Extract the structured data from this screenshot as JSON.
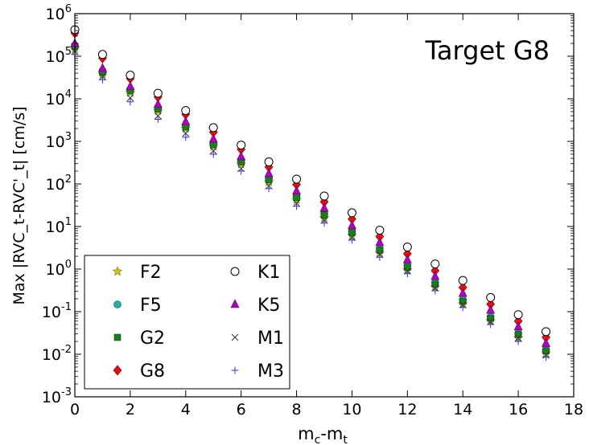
{
  "chart_data": {
    "type": "scatter",
    "annotation": "Target G8",
    "xlabel_main": "m",
    "xlabel_sub1": "c",
    "xlabel_sep": "-m",
    "xlabel_sub2": "t",
    "ylabel": "Max |RVC_t-RVC'_t|  [cm/s]",
    "yscale": "log",
    "xlim": [
      0,
      18
    ],
    "ylim": [
      0.001,
      1000000
    ],
    "xticks": [
      0,
      2,
      4,
      6,
      8,
      10,
      12,
      14,
      16,
      18
    ],
    "xtick_labels": [
      "0",
      "2",
      "4",
      "6",
      "8",
      "10",
      "12",
      "14",
      "16",
      "18"
    ],
    "yticks": [
      {
        "base": "10",
        "exp": "-3",
        "value": 0.001
      },
      {
        "base": "10",
        "exp": "-2",
        "value": 0.01
      },
      {
        "base": "10",
        "exp": "-1",
        "value": 0.1
      },
      {
        "base": "10",
        "exp": "0",
        "value": 1
      },
      {
        "base": "10",
        "exp": "1",
        "value": 10
      },
      {
        "base": "10",
        "exp": "2",
        "value": 100
      },
      {
        "base": "10",
        "exp": "3",
        "value": 1000
      },
      {
        "base": "10",
        "exp": "4",
        "value": 10000
      },
      {
        "base": "10",
        "exp": "5",
        "value": 100000
      },
      {
        "base": "10",
        "exp": "6",
        "value": 1000000
      }
    ],
    "legend_position": "lower-left",
    "x": [
      0,
      1,
      2,
      3,
      4,
      5,
      6,
      7,
      8,
      9,
      10,
      11,
      12,
      13,
      14,
      15,
      16,
      17
    ],
    "series": [
      {
        "name": "F2",
        "marker": "star",
        "color": "#d4c200",
        "values": [
          150000,
          38000,
          14000,
          5200,
          2000,
          760,
          290,
          110,
          42,
          16,
          6.2,
          2.4,
          0.95,
          0.38,
          0.15,
          0.06,
          0.024,
          0.0105
        ]
      },
      {
        "name": "F5",
        "marker": "circle",
        "color": "#20b2aa",
        "values": [
          180000,
          45000,
          16500,
          6200,
          2400,
          900,
          350,
          135,
          52,
          20,
          7.8,
          3.0,
          1.2,
          0.48,
          0.19,
          0.075,
          0.031,
          0.013
        ]
      },
      {
        "name": "G2",
        "marker": "square",
        "color": "#1a7f1a",
        "values": [
          170000,
          42000,
          15500,
          5800,
          2200,
          840,
          330,
          125,
          48,
          18.5,
          7.2,
          2.8,
          1.1,
          0.44,
          0.175,
          0.07,
          0.029,
          0.012
        ]
      },
      {
        "name": "G8",
        "marker": "diamond",
        "color": "#e01010",
        "values": [
          350000,
          90000,
          30000,
          11000,
          4300,
          1650,
          650,
          250,
          97,
          38,
          15,
          5.8,
          2.3,
          0.92,
          0.37,
          0.15,
          0.06,
          0.025
        ]
      },
      {
        "name": "K1",
        "marker": "open-circle",
        "color": "#000000",
        "values": [
          420000,
          110000,
          36000,
          13500,
          5300,
          2100,
          820,
          330,
          130,
          52,
          21,
          8.2,
          3.3,
          1.32,
          0.54,
          0.215,
          0.085,
          0.034
        ]
      },
      {
        "name": "K5",
        "marker": "triangle",
        "color": "#b000c0",
        "values": [
          200000,
          52000,
          19500,
          7400,
          2900,
          1130,
          440,
          175,
          68,
          27,
          10.5,
          4.2,
          1.65,
          0.67,
          0.27,
          0.108,
          0.044,
          0.018
        ]
      },
      {
        "name": "M1",
        "marker": "x",
        "color": "#333333",
        "values": [
          130000,
          33000,
          10500,
          4000,
          1550,
          600,
          230,
          90,
          35,
          14,
          5.5,
          2.2,
          0.9,
          0.36,
          0.145,
          0.058,
          0.024,
          0.0095
        ]
      },
      {
        "name": "M3",
        "marker": "plus",
        "color": "#3333cc",
        "values": [
          110000,
          28000,
          8500,
          3300,
          1250,
          500,
          200,
          78,
          30,
          12,
          4.8,
          1.9,
          0.78,
          0.31,
          0.125,
          0.05,
          0.02,
          0.0085
        ]
      }
    ]
  }
}
